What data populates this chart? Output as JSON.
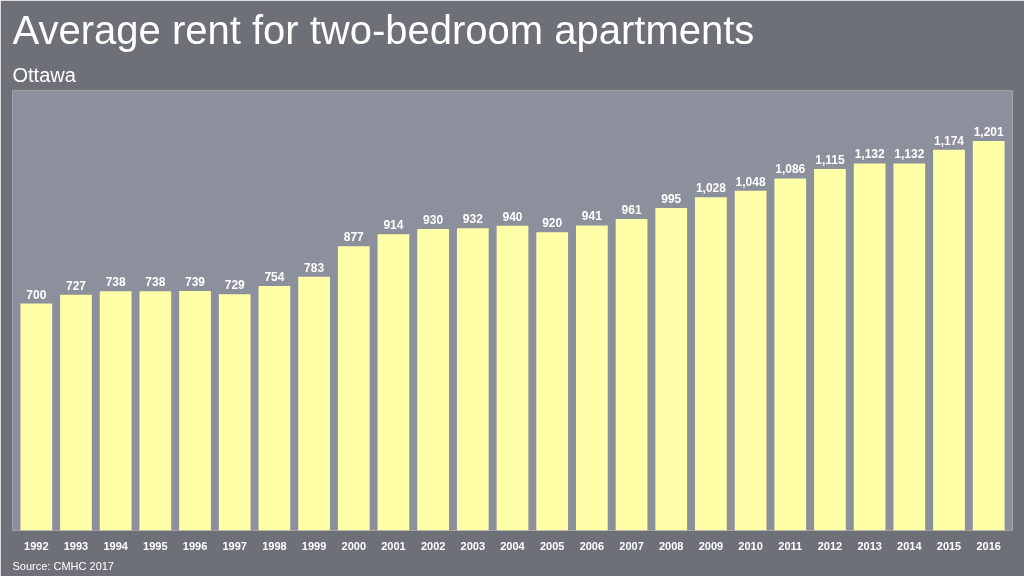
{
  "chart_data": {
    "type": "bar",
    "title": "Average rent for two-bedroom apartments",
    "subtitle": "Ottawa",
    "categories": [
      "1992",
      "1993",
      "1994",
      "1995",
      "1996",
      "1997",
      "1998",
      "1999",
      "2000",
      "2001",
      "2002",
      "2003",
      "2004",
      "2005",
      "2006",
      "2007",
      "2008",
      "2009",
      "2010",
      "2011",
      "2012",
      "2013",
      "2014",
      "2015",
      "2016"
    ],
    "values": [
      700,
      727,
      738,
      738,
      739,
      729,
      754,
      783,
      877,
      914,
      930,
      932,
      940,
      920,
      941,
      961,
      995,
      1028,
      1048,
      1086,
      1115,
      1132,
      1132,
      1174,
      1201
    ],
    "value_labels": [
      "700",
      "727",
      "738",
      "738",
      "739",
      "729",
      "754",
      "783",
      "877",
      "914",
      "930",
      "932",
      "940",
      "920",
      "941",
      "961",
      "995",
      "1,028",
      "1,048",
      "1,086",
      "1,115",
      "1,132",
      "1,132",
      "1,174",
      "1,201"
    ],
    "color": "#ffffa8",
    "grid": false,
    "annotations": [
      "Source: CMHC 2017"
    ]
  }
}
